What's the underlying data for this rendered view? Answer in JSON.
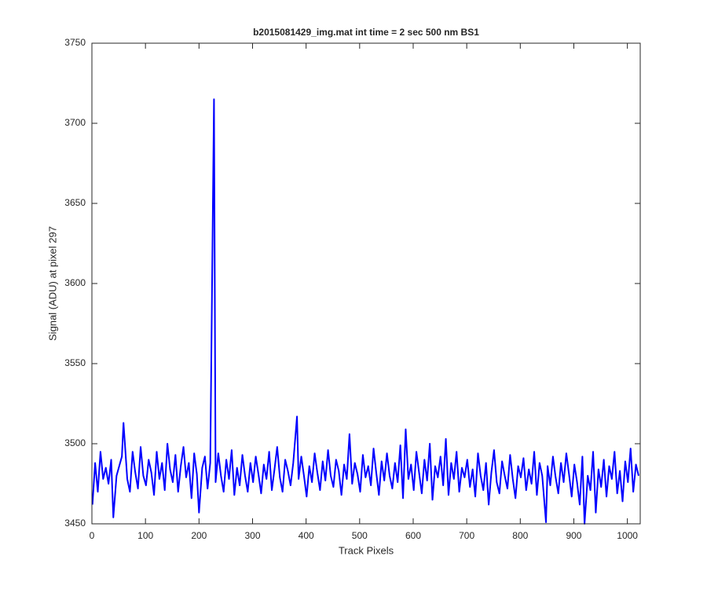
{
  "chart_data": {
    "type": "line",
    "title": "b2015081429_img.mat int time = 2 sec  500 nm BS1",
    "x_label": "Track Pixels",
    "y_label": "Signal (ADU) at pixel 297",
    "xlim": [
      0,
      1024
    ],
    "ylim": [
      3450,
      3750
    ],
    "xticks": [
      0,
      100,
      200,
      300,
      400,
      500,
      600,
      700,
      800,
      900,
      1000
    ],
    "yticks": [
      3450,
      3500,
      3550,
      3600,
      3650,
      3700,
      3750
    ],
    "series": [
      {
        "name": "signal",
        "color": "#0000ff",
        "x": [
          1,
          6,
          11,
          16,
          21,
          26,
          31,
          36,
          40,
          46,
          51,
          56,
          59,
          66,
          71,
          76,
          81,
          86,
          91,
          96,
          101,
          106,
          111,
          116,
          121,
          126,
          131,
          136,
          141,
          146,
          151,
          156,
          161,
          166,
          171,
          176,
          181,
          186,
          191,
          196,
          200,
          206,
          211,
          216,
          221,
          228,
          231,
          236,
          241,
          246,
          251,
          256,
          261,
          266,
          271,
          276,
          281,
          286,
          291,
          296,
          301,
          306,
          311,
          316,
          321,
          326,
          331,
          336,
          341,
          346,
          351,
          356,
          361,
          366,
          371,
          376,
          383,
          386,
          391,
          396,
          401,
          406,
          411,
          416,
          421,
          426,
          431,
          436,
          441,
          446,
          451,
          456,
          461,
          466,
          471,
          476,
          481,
          486,
          491,
          496,
          501,
          506,
          511,
          516,
          521,
          526,
          531,
          536,
          541,
          546,
          551,
          556,
          561,
          566,
          571,
          576,
          581,
          586,
          591,
          596,
          601,
          606,
          611,
          616,
          621,
          626,
          631,
          636,
          641,
          646,
          651,
          656,
          661,
          666,
          671,
          676,
          681,
          686,
          691,
          696,
          701,
          706,
          711,
          716,
          721,
          726,
          731,
          736,
          741,
          746,
          751,
          756,
          761,
          766,
          771,
          776,
          781,
          786,
          791,
          796,
          801,
          806,
          811,
          816,
          821,
          826,
          831,
          836,
          841,
          848,
          851,
          856,
          861,
          866,
          871,
          876,
          881,
          886,
          891,
          896,
          901,
          906,
          911,
          916,
          920,
          926,
          931,
          936,
          941,
          946,
          951,
          956,
          961,
          966,
          971,
          976,
          981,
          986,
          991,
          996,
          1001,
          1006,
          1011,
          1016,
          1021
        ],
        "values": [
          3462,
          3488,
          3470,
          3495,
          3478,
          3485,
          3475,
          3490,
          3454,
          3480,
          3486,
          3492,
          3513,
          3478,
          3470,
          3495,
          3482,
          3472,
          3498,
          3480,
          3474,
          3490,
          3482,
          3468,
          3495,
          3478,
          3488,
          3471,
          3500,
          3484,
          3476,
          3493,
          3470,
          3486,
          3498,
          3479,
          3488,
          3466,
          3494,
          3481,
          3457,
          3485,
          3492,
          3472,
          3488,
          3715,
          3476,
          3494,
          3480,
          3470,
          3490,
          3478,
          3496,
          3468,
          3485,
          3474,
          3493,
          3480,
          3470,
          3488,
          3476,
          3492,
          3481,
          3469,
          3487,
          3478,
          3495,
          3471,
          3484,
          3498,
          3479,
          3470,
          3490,
          3483,
          3474,
          3488,
          3517,
          3478,
          3492,
          3480,
          3467,
          3486,
          3476,
          3494,
          3482,
          3471,
          3489,
          3477,
          3496,
          3480,
          3473,
          3490,
          3483,
          3468,
          3487,
          3478,
          3506,
          3475,
          3488,
          3481,
          3470,
          3493,
          3479,
          3486,
          3474,
          3497,
          3482,
          3468,
          3489,
          3477,
          3494,
          3480,
          3472,
          3488,
          3476,
          3499,
          3466,
          3509,
          3478,
          3487,
          3471,
          3495,
          3482,
          3469,
          3490,
          3477,
          3500,
          3465,
          3486,
          3479,
          3492,
          3474,
          3503,
          3468,
          3488,
          3478,
          3495,
          3470,
          3485,
          3479,
          3490,
          3473,
          3484,
          3467,
          3494,
          3480,
          3471,
          3488,
          3462,
          3482,
          3496,
          3476,
          3469,
          3489,
          3480,
          3472,
          3493,
          3478,
          3466,
          3486,
          3479,
          3491,
          3471,
          3484,
          3475,
          3495,
          3468,
          3488,
          3480,
          3451,
          3486,
          3474,
          3492,
          3479,
          3469,
          3488,
          3476,
          3494,
          3481,
          3467,
          3487,
          3476,
          3462,
          3492,
          3450,
          3480,
          3471,
          3495,
          3457,
          3484,
          3473,
          3490,
          3467,
          3486,
          3478,
          3495,
          3469,
          3483,
          3464,
          3489,
          3476,
          3497,
          3470,
          3487,
          3480
        ]
      }
    ]
  }
}
